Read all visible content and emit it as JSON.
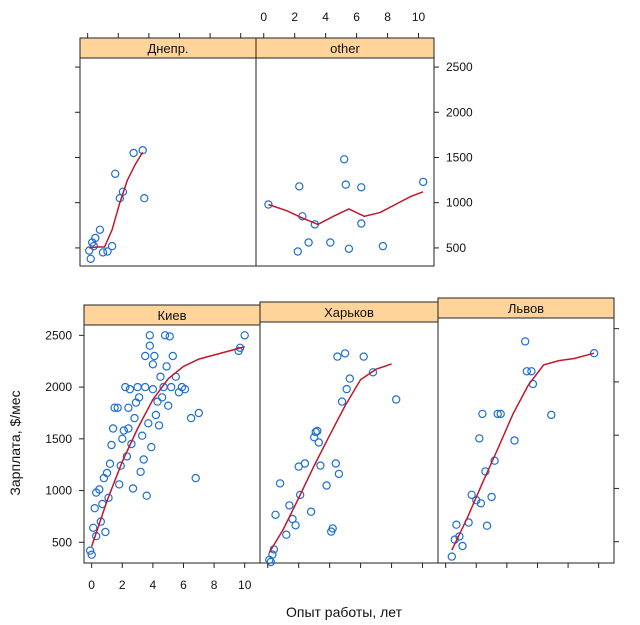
{
  "chart_data": {
    "type": "scatter",
    "xlabel": "Опыт работы, лет",
    "ylabel": "Зарплата, $/мес",
    "xlim": [
      -0.5,
      11
    ],
    "ylim": [
      300,
      2600
    ],
    "x_ticks": [
      0,
      2,
      4,
      6,
      8,
      10
    ],
    "y_ticks": [
      500,
      1000,
      1500,
      2000,
      2500
    ],
    "point_color": "#1f6fd1",
    "fit_color": "#c0182a",
    "strip_color": "#ffd49a",
    "panels": [
      {
        "name": "Днепр.",
        "points": [
          [
            0.1,
            470
          ],
          [
            0.2,
            380
          ],
          [
            0.3,
            560
          ],
          [
            0.4,
            520
          ],
          [
            0.5,
            610
          ],
          [
            0.8,
            700
          ],
          [
            1.0,
            450
          ],
          [
            1.3,
            460
          ],
          [
            1.6,
            520
          ],
          [
            1.8,
            1320
          ],
          [
            2.1,
            1050
          ],
          [
            2.3,
            1120
          ],
          [
            3.0,
            1550
          ],
          [
            3.6,
            1580
          ],
          [
            3.7,
            1050
          ]
        ],
        "fit": [
          [
            0.1,
            500
          ],
          [
            0.6,
            510
          ],
          [
            1.1,
            510
          ],
          [
            1.6,
            700
          ],
          [
            2.1,
            1000
          ],
          [
            2.6,
            1250
          ],
          [
            3.1,
            1420
          ],
          [
            3.6,
            1560
          ]
        ]
      },
      {
        "name": "other",
        "points": [
          [
            0.3,
            980
          ],
          [
            2.3,
            1180
          ],
          [
            2.5,
            850
          ],
          [
            2.2,
            460
          ],
          [
            2.9,
            560
          ],
          [
            3.3,
            760
          ],
          [
            4.3,
            560
          ],
          [
            5.2,
            1480
          ],
          [
            5.3,
            1200
          ],
          [
            5.5,
            490
          ],
          [
            6.3,
            1170
          ],
          [
            6.3,
            770
          ],
          [
            7.7,
            520
          ],
          [
            10.3,
            1230
          ]
        ],
        "fit": [
          [
            0.3,
            980
          ],
          [
            1.5,
            910
          ],
          [
            2.5,
            830
          ],
          [
            3.5,
            760
          ],
          [
            4.5,
            850
          ],
          [
            5.5,
            930
          ],
          [
            6.5,
            850
          ],
          [
            7.5,
            890
          ],
          [
            8.5,
            980
          ],
          [
            9.5,
            1070
          ],
          [
            10.3,
            1120
          ]
        ]
      },
      {
        "name": "Киев",
        "points": [
          [
            -0.1,
            420
          ],
          [
            0.0,
            380
          ],
          [
            0.1,
            640
          ],
          [
            0.2,
            830
          ],
          [
            0.3,
            560
          ],
          [
            0.3,
            980
          ],
          [
            0.5,
            1010
          ],
          [
            0.6,
            700
          ],
          [
            0.7,
            870
          ],
          [
            0.8,
            1120
          ],
          [
            0.9,
            600
          ],
          [
            1.0,
            1170
          ],
          [
            1.1,
            930
          ],
          [
            1.2,
            1260
          ],
          [
            1.3,
            1440
          ],
          [
            1.4,
            1600
          ],
          [
            1.5,
            1800
          ],
          [
            1.7,
            1800
          ],
          [
            1.8,
            1060
          ],
          [
            1.9,
            1240
          ],
          [
            2.0,
            1500
          ],
          [
            2.1,
            1580
          ],
          [
            2.2,
            2000
          ],
          [
            2.3,
            1330
          ],
          [
            2.4,
            1800
          ],
          [
            2.4,
            1600
          ],
          [
            2.5,
            1980
          ],
          [
            2.6,
            1450
          ],
          [
            2.7,
            1020
          ],
          [
            2.8,
            1700
          ],
          [
            2.9,
            1850
          ],
          [
            3.0,
            2000
          ],
          [
            3.1,
            1900
          ],
          [
            3.2,
            1180
          ],
          [
            3.3,
            1530
          ],
          [
            3.4,
            1300
          ],
          [
            3.5,
            2000
          ],
          [
            3.5,
            2300
          ],
          [
            3.6,
            950
          ],
          [
            3.7,
            1650
          ],
          [
            3.8,
            2500
          ],
          [
            3.8,
            2400
          ],
          [
            3.9,
            1420
          ],
          [
            4.0,
            2220
          ],
          [
            4.0,
            1980
          ],
          [
            4.1,
            2300
          ],
          [
            4.2,
            1730
          ],
          [
            4.3,
            1860
          ],
          [
            4.4,
            1630
          ],
          [
            4.5,
            2100
          ],
          [
            4.6,
            1900
          ],
          [
            4.7,
            2000
          ],
          [
            4.8,
            2500
          ],
          [
            4.9,
            2200
          ],
          [
            5.0,
            1820
          ],
          [
            5.1,
            2490
          ],
          [
            5.2,
            2000
          ],
          [
            5.3,
            2300
          ],
          [
            5.5,
            2100
          ],
          [
            5.7,
            1950
          ],
          [
            5.9,
            2000
          ],
          [
            6.1,
            1980
          ],
          [
            6.5,
            1700
          ],
          [
            6.8,
            1120
          ],
          [
            7.0,
            1750
          ],
          [
            9.6,
            2350
          ],
          [
            9.7,
            2380
          ],
          [
            10.0,
            2500
          ]
        ],
        "fit": [
          [
            0.0,
            460
          ],
          [
            1.0,
            900
          ],
          [
            2.0,
            1280
          ],
          [
            3.0,
            1600
          ],
          [
            4.0,
            1880
          ],
          [
            5.0,
            2080
          ],
          [
            6.0,
            2200
          ],
          [
            7.0,
            2270
          ],
          [
            8.0,
            2310
          ],
          [
            9.0,
            2350
          ],
          [
            10.0,
            2390
          ]
        ]
      },
      {
        "name": "Харьков",
        "points": [
          [
            0.1,
            330
          ],
          [
            0.2,
            310
          ],
          [
            0.3,
            380
          ],
          [
            0.4,
            430
          ],
          [
            0.5,
            760
          ],
          [
            0.8,
            1060
          ],
          [
            1.2,
            570
          ],
          [
            1.4,
            850
          ],
          [
            1.6,
            720
          ],
          [
            1.8,
            660
          ],
          [
            2.0,
            1220
          ],
          [
            2.1,
            950
          ],
          [
            2.4,
            1250
          ],
          [
            2.8,
            790
          ],
          [
            3.0,
            1500
          ],
          [
            3.1,
            1550
          ],
          [
            3.2,
            1560
          ],
          [
            3.3,
            1450
          ],
          [
            3.4,
            1230
          ],
          [
            3.8,
            1040
          ],
          [
            4.1,
            600
          ],
          [
            4.2,
            630
          ],
          [
            4.4,
            1250
          ],
          [
            4.5,
            2270
          ],
          [
            4.6,
            1150
          ],
          [
            4.8,
            1840
          ],
          [
            5.0,
            2300
          ],
          [
            5.1,
            1960
          ],
          [
            5.3,
            2060
          ],
          [
            6.2,
            2270
          ],
          [
            6.8,
            2120
          ],
          [
            8.3,
            1860
          ]
        ],
        "fit": [
          [
            0.1,
            400
          ],
          [
            1.0,
            620
          ],
          [
            2.0,
            920
          ],
          [
            3.0,
            1230
          ],
          [
            4.0,
            1520
          ],
          [
            5.0,
            1800
          ],
          [
            6.0,
            2050
          ],
          [
            7.0,
            2150
          ],
          [
            8.0,
            2200
          ]
        ]
      },
      {
        "name": "Львов",
        "points": [
          [
            0.4,
            360
          ],
          [
            0.6,
            520
          ],
          [
            0.7,
            660
          ],
          [
            0.9,
            550
          ],
          [
            1.1,
            460
          ],
          [
            1.5,
            680
          ],
          [
            1.7,
            940
          ],
          [
            2.0,
            890
          ],
          [
            2.2,
            1470
          ],
          [
            2.3,
            860
          ],
          [
            2.4,
            1700
          ],
          [
            2.6,
            1160
          ],
          [
            2.7,
            650
          ],
          [
            3.0,
            920
          ],
          [
            3.2,
            1260
          ],
          [
            3.4,
            1700
          ],
          [
            3.6,
            1700
          ],
          [
            4.5,
            1450
          ],
          [
            5.2,
            2380
          ],
          [
            5.3,
            2100
          ],
          [
            5.6,
            2100
          ],
          [
            5.7,
            1980
          ],
          [
            6.9,
            1690
          ],
          [
            9.7,
            2270
          ]
        ],
        "fit": [
          [
            0.4,
            420
          ],
          [
            1.4,
            720
          ],
          [
            2.4,
            1050
          ],
          [
            3.4,
            1370
          ],
          [
            4.4,
            1700
          ],
          [
            5.4,
            1970
          ],
          [
            6.4,
            2160
          ],
          [
            7.4,
            2200
          ],
          [
            8.4,
            2220
          ],
          [
            9.7,
            2270
          ]
        ]
      }
    ]
  }
}
